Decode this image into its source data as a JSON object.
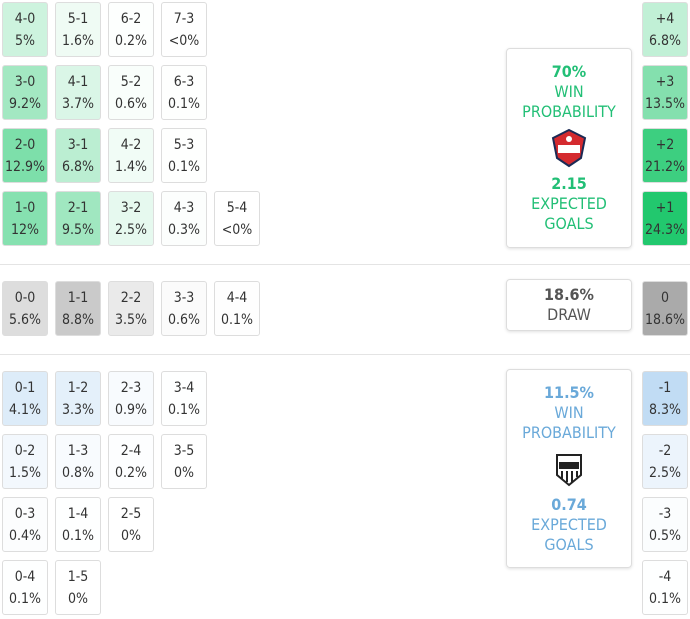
{
  "home": {
    "rows": [
      [
        {
          "score": "4-0",
          "prob": "5%"
        },
        {
          "score": "5-1",
          "prob": "1.6%"
        },
        {
          "score": "6-2",
          "prob": "0.2%"
        },
        {
          "score": "7-3",
          "prob": "<0%"
        }
      ],
      [
        {
          "score": "3-0",
          "prob": "9.2%"
        },
        {
          "score": "4-1",
          "prob": "3.7%"
        },
        {
          "score": "5-2",
          "prob": "0.6%"
        },
        {
          "score": "6-3",
          "prob": "0.1%"
        }
      ],
      [
        {
          "score": "2-0",
          "prob": "12.9%"
        },
        {
          "score": "3-1",
          "prob": "6.8%"
        },
        {
          "score": "4-2",
          "prob": "1.4%"
        },
        {
          "score": "5-3",
          "prob": "0.1%"
        }
      ],
      [
        {
          "score": "1-0",
          "prob": "12%"
        },
        {
          "score": "2-1",
          "prob": "9.5%"
        },
        {
          "score": "3-2",
          "prob": "2.5%"
        },
        {
          "score": "4-3",
          "prob": "0.3%"
        },
        {
          "score": "5-4",
          "prob": "<0%"
        }
      ]
    ],
    "margins": [
      {
        "diff": "+4",
        "prob": "6.8%"
      },
      {
        "diff": "+3",
        "prob": "13.5%"
      },
      {
        "diff": "+2",
        "prob": "21.2%"
      },
      {
        "diff": "+1",
        "prob": "24.3%"
      }
    ],
    "card": {
      "probability": "70%",
      "label": "WIN PROBABILITY",
      "xg": "2.15",
      "xg_label": "EXPECTED GOALS"
    }
  },
  "draw": {
    "rows": [
      [
        {
          "score": "0-0",
          "prob": "5.6%"
        },
        {
          "score": "1-1",
          "prob": "8.8%"
        },
        {
          "score": "2-2",
          "prob": "3.5%"
        },
        {
          "score": "3-3",
          "prob": "0.6%"
        },
        {
          "score": "4-4",
          "prob": "0.1%"
        }
      ]
    ],
    "margins": [
      {
        "diff": "0",
        "prob": "18.6%"
      }
    ],
    "card": {
      "probability": "18.6%",
      "label": "DRAW"
    }
  },
  "away": {
    "rows": [
      [
        {
          "score": "0-1",
          "prob": "4.1%"
        },
        {
          "score": "1-2",
          "prob": "3.3%"
        },
        {
          "score": "2-3",
          "prob": "0.9%"
        },
        {
          "score": "3-4",
          "prob": "0.1%"
        }
      ],
      [
        {
          "score": "0-2",
          "prob": "1.5%"
        },
        {
          "score": "1-3",
          "prob": "0.8%"
        },
        {
          "score": "2-4",
          "prob": "0.2%"
        },
        {
          "score": "3-5",
          "prob": "0%"
        }
      ],
      [
        {
          "score": "0-3",
          "prob": "0.4%"
        },
        {
          "score": "1-4",
          "prob": "0.1%"
        },
        {
          "score": "2-5",
          "prob": "0%"
        }
      ],
      [
        {
          "score": "0-4",
          "prob": "0.1%"
        },
        {
          "score": "1-5",
          "prob": "0%"
        }
      ]
    ],
    "margins": [
      {
        "diff": "-1",
        "prob": "8.3%"
      },
      {
        "diff": "-2",
        "prob": "2.5%"
      },
      {
        "diff": "-3",
        "prob": "0.5%"
      },
      {
        "diff": "-4",
        "prob": "0.1%"
      }
    ],
    "card": {
      "probability": "11.5%",
      "label": "WIN PROBABILITY",
      "xg": "0.74",
      "xg_label": "EXPECTED GOALS"
    }
  }
}
